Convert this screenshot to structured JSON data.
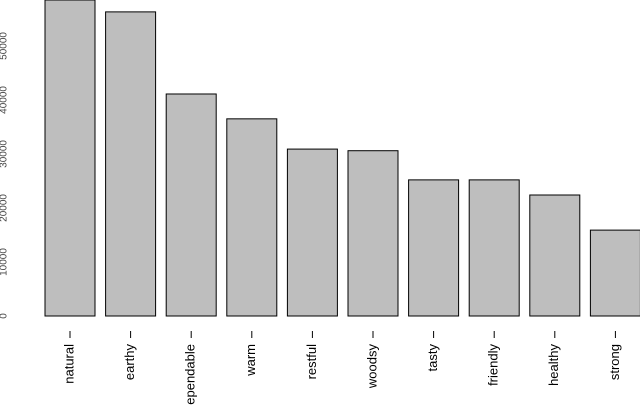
{
  "chart_data": {
    "type": "bar",
    "categories": [
      "natural",
      "earthy",
      "dependable",
      "warm",
      "restful",
      "woodsy",
      "tasty",
      "friendly",
      "healthy",
      "strong"
    ],
    "values": [
      58500,
      56300,
      41100,
      36500,
      30900,
      30600,
      25200,
      25200,
      22400,
      15900
    ],
    "color": "#bebebe",
    "ylim": [
      0,
      58500
    ],
    "yticks": [
      0,
      10000,
      20000,
      30000,
      40000,
      50000
    ]
  }
}
